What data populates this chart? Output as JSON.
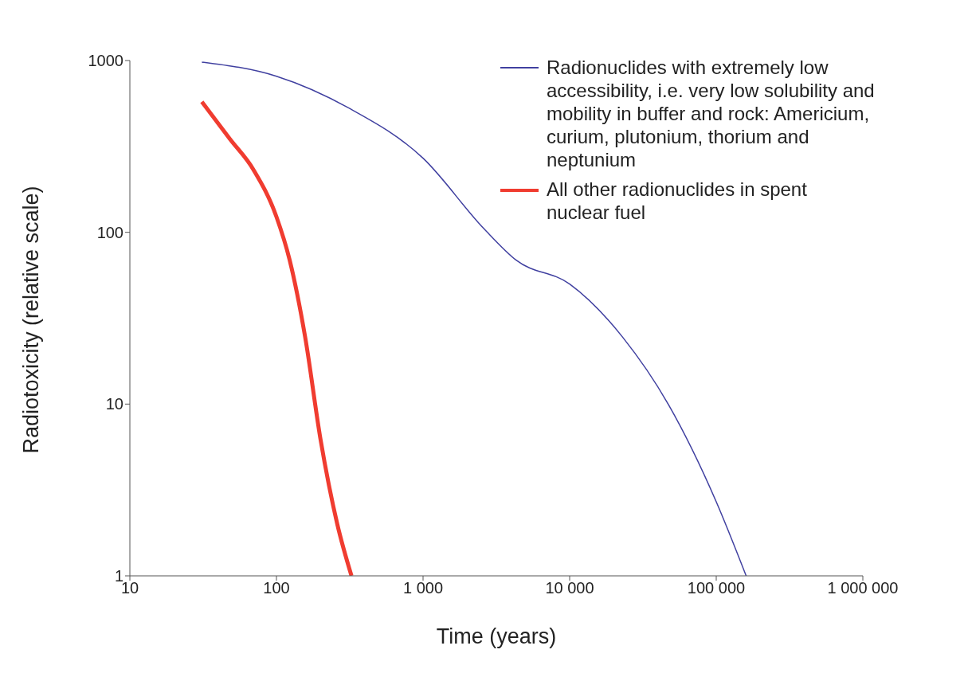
{
  "chart_data": {
    "type": "line",
    "xlabel": "Time (years)",
    "ylabel": "Radiotoxicity (relative scale)",
    "log": "xy",
    "xlim": [
      10,
      1000000
    ],
    "ylim": [
      1,
      1000
    ],
    "xticks": [
      10,
      100,
      {
        "value": 1000,
        "label": "1 000"
      },
      {
        "value": 10000,
        "label": "10 000"
      },
      {
        "value": 100000,
        "label": "100 000"
      },
      {
        "value": 1000000,
        "label": "1 000 000"
      }
    ],
    "yticks": [
      1,
      10,
      100,
      1000
    ],
    "grid": false,
    "legend": "top right",
    "marker": "none",
    "line_style": "solid",
    "series": [
      {
        "name": "Radionuclides with extremely low accessibility, i.e. very low solubility and mobility in buffer and rock: Americium, curium, plutonium, thorium and neptunium",
        "color": "#4040a0",
        "x": [
          31,
          100,
          310,
          1000,
          2600,
          4300,
          10000,
          23000,
          47000,
          100000,
          160000
        ],
        "values": [
          980,
          810,
          530,
          270,
          105,
          69,
          50,
          24.5,
          10,
          2.7,
          1
        ]
      },
      {
        "name": "All other radionuclides in spent nuclear fuel",
        "color": "#f03c30",
        "x": [
          31,
          48,
          70,
          100,
          123,
          157,
          200,
          260,
          325
        ],
        "values": [
          575,
          350,
          230,
          123,
          69,
          24.5,
          6.2,
          2,
          1
        ]
      }
    ]
  }
}
